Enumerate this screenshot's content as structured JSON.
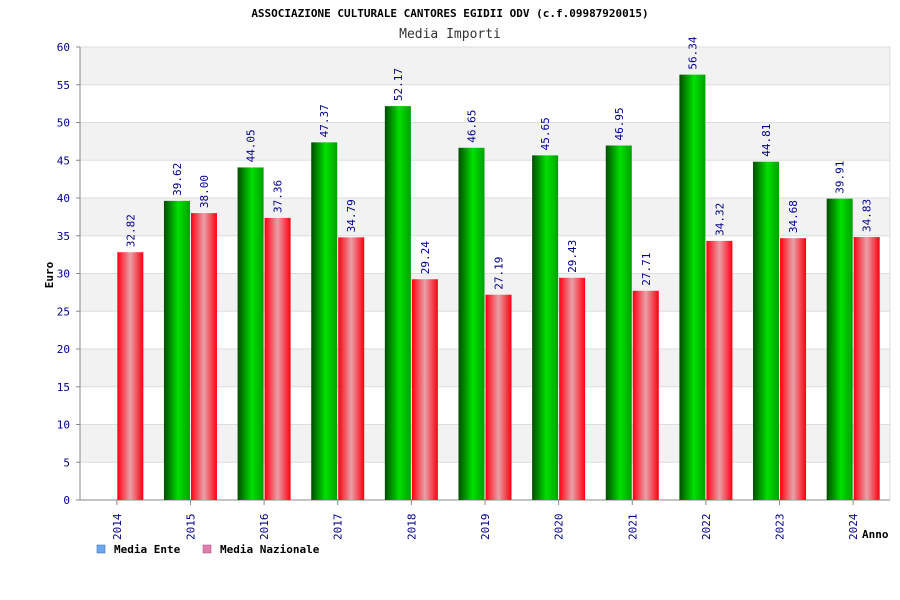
{
  "chart_data": {
    "type": "bar",
    "title": "ASSOCIAZIONE CULTURALE CANTORES EGIDII ODV (c.f.09987920015)",
    "subtitle": "Media Importi",
    "xlabel": "Anno",
    "ylabel": "Euro",
    "ylim": [
      0,
      60
    ],
    "ytick_step": 5,
    "grid": "horizontal",
    "legend_position": "bottom-left",
    "categories": [
      "2014",
      "2015",
      "2016",
      "2017",
      "2018",
      "2019",
      "2020",
      "2021",
      "2022",
      "2023",
      "2024"
    ],
    "series": [
      {
        "name": "Media Ente",
        "legend_color": "#6aa8f0",
        "bar_color": "#00a000",
        "values": [
          null,
          39.62,
          44.05,
          47.37,
          52.17,
          46.65,
          45.65,
          46.95,
          56.34,
          44.81,
          39.91
        ],
        "labels": [
          "",
          "39.62",
          "44.05",
          "47.37",
          "52.17",
          "46.65",
          "45.65",
          "46.95",
          "56.34",
          "44.81",
          "39.91"
        ]
      },
      {
        "name": "Media Nazionale",
        "legend_color": "#e080b0",
        "bar_color": "#e00010",
        "values": [
          32.82,
          38.0,
          37.36,
          34.79,
          29.24,
          27.19,
          29.43,
          27.71,
          34.32,
          34.68,
          34.83
        ],
        "labels": [
          "32.82",
          "38.00",
          "37.36",
          "34.79",
          "29.24",
          "27.19",
          "29.43",
          "27.71",
          "34.32",
          "34.68",
          "34.83"
        ]
      }
    ]
  }
}
